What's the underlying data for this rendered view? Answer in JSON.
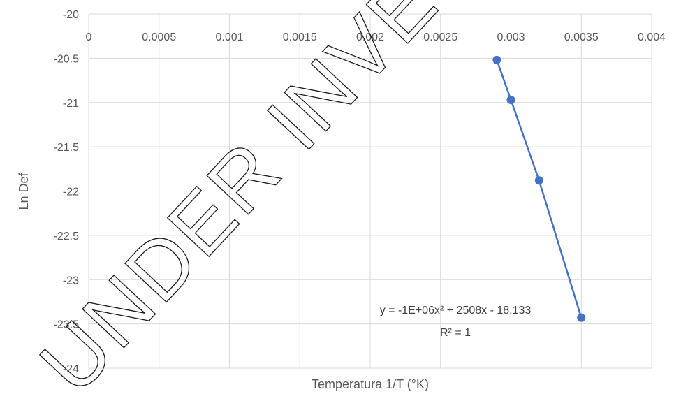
{
  "chart_data": {
    "type": "scatter",
    "xlabel": "Temperatura 1/T (°K)",
    "ylabel": "Ln Def",
    "xlim": [
      0,
      0.004
    ],
    "ylim": [
      -24,
      -20
    ],
    "x_tick_labels": [
      "0",
      "0.0005",
      "0.001",
      "0.0015",
      "0.002",
      "0.0025",
      "0.003",
      "0.0035",
      "0.004"
    ],
    "y_tick_labels": [
      "-20",
      "-20.5",
      "-21",
      "-21.5",
      "-22",
      "-22.5",
      "-23",
      "-23.5",
      "-24"
    ],
    "x_axis_position": "top",
    "grid": true,
    "series": [
      {
        "x": [
          0.0029,
          0.003,
          0.0032,
          0.0035
        ],
        "y": [
          -20.52,
          -20.97,
          -21.88,
          -23.43
        ],
        "color": "#4472C4"
      }
    ],
    "trendline": {
      "type": "polynomial-2",
      "equation": "y = -1E+06x² + 2508x - 18.133",
      "r_squared": "R² = 1"
    }
  },
  "watermark": "UNDER INVESTIGATION"
}
